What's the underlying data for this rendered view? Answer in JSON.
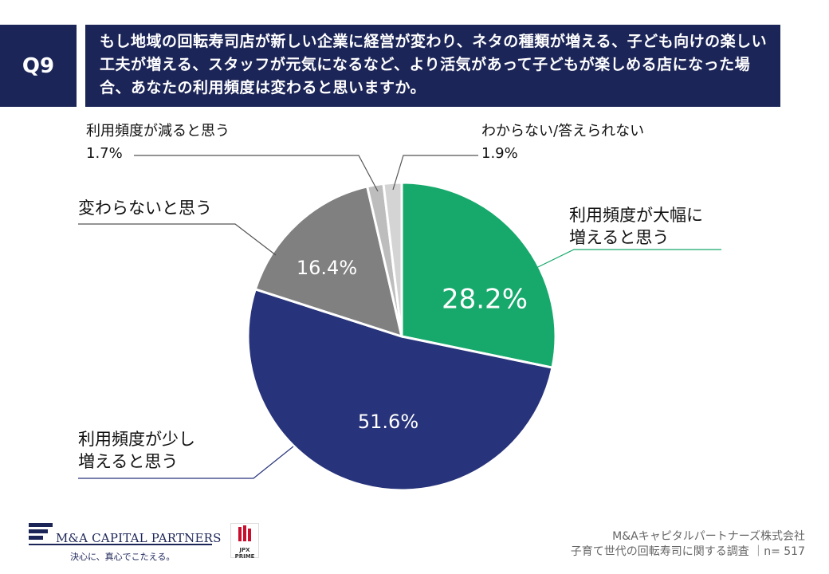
{
  "question": {
    "number": "Q9",
    "text": "もし地域の回転寿司店が新しい企業に経営が変わり、ネタの種類が増える、子ども向けの楽しい工夫が増える、スタッフが元気になるなど、より活気があって子どもが楽しめる店になった場合、あなたの利用頻度は変わると思いますか。"
  },
  "chart_data": {
    "type": "pie",
    "title": "",
    "start": "12 o'clock",
    "direction": "clockwise",
    "slices": [
      {
        "label_line1": "利用頻度が大幅に",
        "label_line2": "増えると思う",
        "value": 28.2,
        "display": "28.2%",
        "color": "#16a96b"
      },
      {
        "label_line1": "利用頻度が少し",
        "label_line2": "増えると思う",
        "value": 51.6,
        "display": "51.6%",
        "color": "#27337a"
      },
      {
        "label_line1": "変わらないと思う",
        "label_line2": "",
        "value": 16.4,
        "display": "16.4%",
        "color": "#808080"
      },
      {
        "label_line1": "利用頻度が減ると思う",
        "label_line2": "",
        "value": 1.7,
        "display": "1.7%",
        "color": "#bdbdbd"
      },
      {
        "label_line1": "わからない/答えられない",
        "label_line2": "",
        "value": 1.9,
        "display": "1.9%",
        "color": "#d4d4d4"
      }
    ]
  },
  "logo": {
    "company": "M&A CAPITAL PARTNERS",
    "tagline": "決心に、真心でこたえる。",
    "jpx_line1": "JPX",
    "jpx_line2": "PRIME"
  },
  "footer": {
    "line1": "M&Aキャピタルパートナーズ株式会社",
    "line2": "子育て世代の回転寿司に関する調査 ｜n= 517"
  },
  "colors": {
    "header_bg": "#1c2557",
    "leader_line": "#555555"
  }
}
